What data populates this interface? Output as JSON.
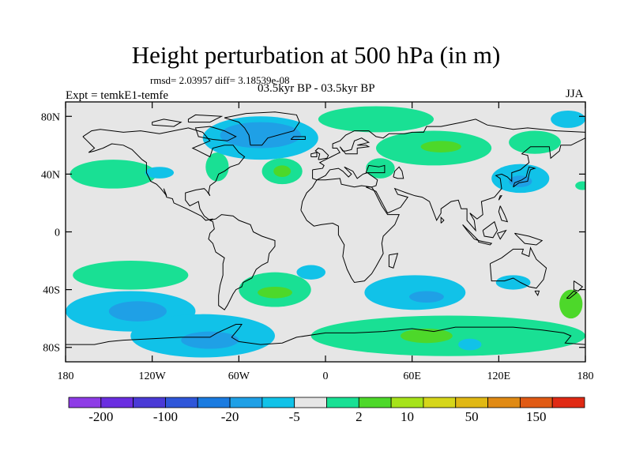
{
  "title": "Height perturbation at 500 hPa (in m)",
  "stats": "rmsd= 2.03957 diff= 3.18539e-08",
  "experiment": "Expt = temkE1-temfe",
  "period": "03.5kyr BP - 03.5kyr BP",
  "season": "JJA",
  "map": {
    "projection": "cylindrical-equidistant",
    "lon_range": [
      -180,
      180
    ],
    "lat_range": [
      -90,
      90
    ],
    "background_color": "#e6e6e6",
    "coastline_color": "#000000",
    "lat_ticks": [
      {
        "value": 80,
        "label": "80N"
      },
      {
        "value": 40,
        "label": "40N"
      },
      {
        "value": 0,
        "label": "0"
      },
      {
        "value": -40,
        "label": "40S"
      },
      {
        "value": -80,
        "label": "80S"
      }
    ],
    "lon_ticks": [
      {
        "value": -180,
        "label": "180"
      },
      {
        "value": -120,
        "label": "120W"
      },
      {
        "value": -60,
        "label": "60W"
      },
      {
        "value": 0,
        "label": "0"
      },
      {
        "value": 60,
        "label": "60E"
      },
      {
        "value": 120,
        "label": "120E"
      },
      {
        "value": 180,
        "label": "180"
      }
    ],
    "contour_regions": [
      {
        "lon": -147,
        "lat": 40,
        "rlon": 30,
        "rlat": 10,
        "level": "2 to 5"
      },
      {
        "lon": -115,
        "lat": 41,
        "rlon": 10,
        "rlat": 4,
        "level": "-5 to -2"
      },
      {
        "lon": -75,
        "lat": 45,
        "rlon": 8,
        "rlat": 10,
        "level": "2 to 5"
      },
      {
        "lon": -45,
        "lat": 65,
        "rlon": 40,
        "rlat": 15,
        "level": "-5 to -2"
      },
      {
        "lon": -45,
        "lat": 67,
        "rlon": 28,
        "rlat": 9,
        "level": "-20 to -5"
      },
      {
        "lon": -30,
        "lat": 42,
        "rlon": 14,
        "rlat": 9,
        "level": "2 to 5"
      },
      {
        "lon": -30,
        "lat": 42,
        "rlon": 6,
        "rlat": 4,
        "level": "5 to 10"
      },
      {
        "lon": 35,
        "lat": 78,
        "rlon": 40,
        "rlat": 9,
        "level": "2 to 5"
      },
      {
        "lon": 75,
        "lat": 58,
        "rlon": 40,
        "rlat": 12,
        "level": "2 to 5"
      },
      {
        "lon": 80,
        "lat": 59,
        "rlon": 14,
        "rlat": 4,
        "level": "5 to 10"
      },
      {
        "lon": 38,
        "lat": 44,
        "rlon": 10,
        "rlat": 7,
        "level": "2 to 5"
      },
      {
        "lon": 145,
        "lat": 62,
        "rlon": 18,
        "rlat": 8,
        "level": "2 to 5"
      },
      {
        "lon": 168,
        "lat": 78,
        "rlon": 12,
        "rlat": 6,
        "level": "-5 to -2"
      },
      {
        "lon": 135,
        "lat": 37,
        "rlon": 20,
        "rlat": 10,
        "level": "-5 to -2"
      },
      {
        "lon": 135,
        "lat": 35,
        "rlon": 8,
        "rlat": 4,
        "level": "-20 to -5"
      },
      {
        "lon": 178,
        "lat": 32,
        "rlon": 5,
        "rlat": 3,
        "level": "2 to 5"
      },
      {
        "lon": -135,
        "lat": -30,
        "rlon": 40,
        "rlat": 10,
        "level": "2 to 5"
      },
      {
        "lon": -135,
        "lat": -55,
        "rlon": 45,
        "rlat": 14,
        "level": "-5 to -2"
      },
      {
        "lon": -130,
        "lat": -55,
        "rlon": 20,
        "rlat": 7,
        "level": "-20 to -5"
      },
      {
        "lon": -35,
        "lat": -40,
        "rlon": 25,
        "rlat": 12,
        "level": "2 to 5"
      },
      {
        "lon": -35,
        "lat": -42,
        "rlon": 12,
        "rlat": 4,
        "level": "5 to 10"
      },
      {
        "lon": -85,
        "lat": -72,
        "rlon": 50,
        "rlat": 15,
        "level": "-5 to -2"
      },
      {
        "lon": -80,
        "lat": -75,
        "rlon": 20,
        "rlat": 6,
        "level": "-20 to -5"
      },
      {
        "lon": -10,
        "lat": -28,
        "rlon": 10,
        "rlat": 5,
        "level": "-5 to -2"
      },
      {
        "lon": 62,
        "lat": -42,
        "rlon": 35,
        "rlat": 12,
        "level": "-5 to -2"
      },
      {
        "lon": 70,
        "lat": -45,
        "rlon": 12,
        "rlat": 4,
        "level": "-20 to -5"
      },
      {
        "lon": 130,
        "lat": -35,
        "rlon": 12,
        "rlat": 5,
        "level": "-5 to -2"
      },
      {
        "lon": 85,
        "lat": -72,
        "rlon": 95,
        "rlat": 14,
        "level": "2 to 5"
      },
      {
        "lon": 70,
        "lat": -72,
        "rlon": 18,
        "rlat": 5,
        "level": "5 to 10"
      },
      {
        "lon": 170,
        "lat": -50,
        "rlon": 8,
        "rlat": 10,
        "level": "5 to 10"
      },
      {
        "lon": 100,
        "lat": -78,
        "rlon": 8,
        "rlat": 4,
        "level": "-5 to -2"
      }
    ]
  },
  "colorbar": {
    "colors": [
      "#8e3ce6",
      "#6a2ee0",
      "#4a3ad6",
      "#2f56d9",
      "#1a7be0",
      "#1fa0e6",
      "#11c2e8",
      "#e6e6e6",
      "#19e094",
      "#4dd82a",
      "#a6e31a",
      "#d6d61a",
      "#e0b814",
      "#e08a14",
      "#e05a14",
      "#e02a14"
    ],
    "labels": [
      {
        "boundary": 1,
        "text": "-200"
      },
      {
        "boundary": 3,
        "text": "-100"
      },
      {
        "boundary": 5,
        "text": "-20"
      },
      {
        "boundary": 7,
        "text": "-5"
      },
      {
        "boundary": 9,
        "text": "2"
      },
      {
        "boundary": 10.5,
        "text": "10"
      },
      {
        "boundary": 12.5,
        "text": "50"
      },
      {
        "boundary": 14.5,
        "text": "150"
      }
    ]
  }
}
